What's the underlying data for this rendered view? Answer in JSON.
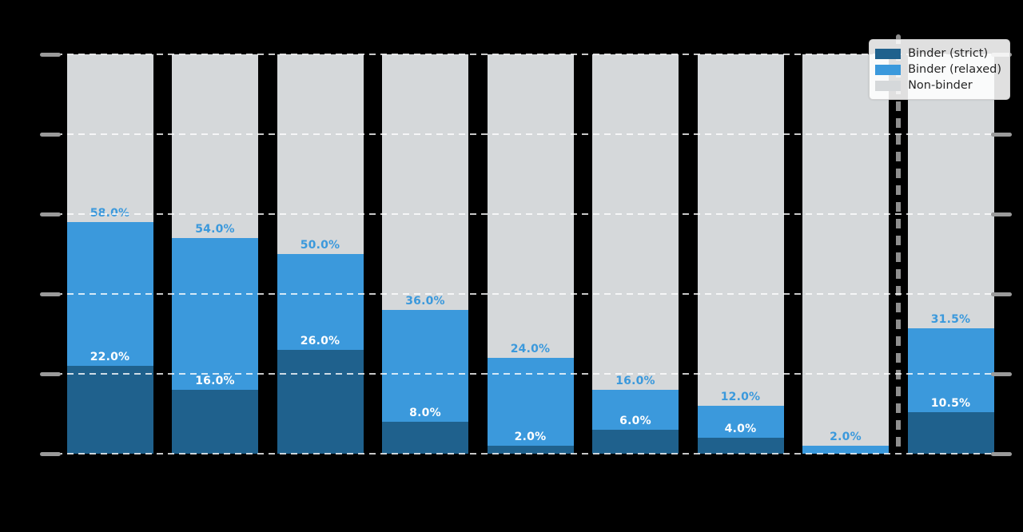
{
  "background_color": "#000000",
  "chart_data": {
    "type": "bar",
    "stacked": true,
    "orientation": "vertical",
    "ylim": [
      0,
      100
    ],
    "grid": "on",
    "grid_step_pct": 20,
    "value_unit": "%",
    "series_note": "Each bar stacks Binder (strict) from 0, Binder (relaxed) up to its cumulative value, Non-binder fills to 100%",
    "bars": [
      {
        "strict_pct": 22.0,
        "relaxed_pct": 58.0,
        "strict_label": "22.0%",
        "relaxed_label": "58.0%"
      },
      {
        "strict_pct": 16.0,
        "relaxed_pct": 54.0,
        "strict_label": "16.0%",
        "relaxed_label": "54.0%"
      },
      {
        "strict_pct": 26.0,
        "relaxed_pct": 50.0,
        "strict_label": "26.0%",
        "relaxed_label": "50.0%"
      },
      {
        "strict_pct": 8.0,
        "relaxed_pct": 36.0,
        "strict_label": "8.0%",
        "relaxed_label": "36.0%"
      },
      {
        "strict_pct": 2.0,
        "relaxed_pct": 24.0,
        "strict_label": "2.0%",
        "relaxed_label": "24.0%"
      },
      {
        "strict_pct": 6.0,
        "relaxed_pct": 16.0,
        "strict_label": "6.0%",
        "relaxed_label": "16.0%"
      },
      {
        "strict_pct": 4.0,
        "relaxed_pct": 12.0,
        "strict_label": "4.0%",
        "relaxed_label": "12.0%"
      },
      {
        "strict_pct": 0.0,
        "relaxed_pct": 2.0,
        "strict_label": null,
        "relaxed_label": "2.0%"
      },
      {
        "strict_pct": 10.5,
        "relaxed_pct": 31.5,
        "strict_label": "10.5%",
        "relaxed_label": "31.5%"
      }
    ],
    "separator_before_last_bar": true,
    "legend": {
      "position": "upper right",
      "entries": [
        {
          "label": "Binder (strict)",
          "color": "#1f618d"
        },
        {
          "label": "Binder (relaxed)",
          "color": "#3b99dc"
        },
        {
          "label": "Non-binder",
          "color": "#d5d8da"
        }
      ]
    },
    "colors": {
      "binder_strict": "#1f618d",
      "binder_relaxed": "#3b99dc",
      "non_binder": "#d5d8da",
      "strict_label_text": "#ffffff",
      "relaxed_label_text": "#3b99dc",
      "tick": "#9a9a9a",
      "separator": "#8f8f8f"
    }
  }
}
